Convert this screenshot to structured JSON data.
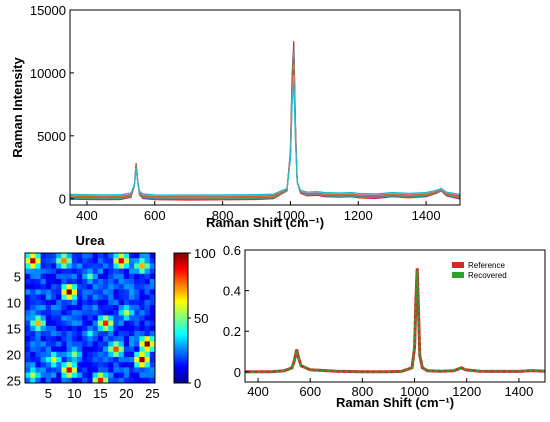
{
  "chart_data": [
    {
      "type": "line",
      "xlabel": "Raman Shift (cm⁻¹)",
      "ylabel": "Raman Intensity",
      "xlim": [
        350,
        1500
      ],
      "ylim": [
        -500,
        15000
      ],
      "xticks": [
        "400",
        "600",
        "800",
        "1000",
        "1200",
        "1400"
      ],
      "yticks": [
        "0",
        "5000",
        "10000",
        "15000"
      ],
      "ytick_values": [
        0,
        5000,
        10000,
        15000
      ],
      "xtick_values": [
        400,
        600,
        800,
        1000,
        1200,
        1400
      ],
      "series": [
        {
          "x": [
            350,
            400,
            450,
            500,
            530,
            540,
            545,
            550,
            555,
            565,
            600,
            700,
            800,
            900,
            950,
            990,
            1000,
            1005,
            1010,
            1015,
            1020,
            1030,
            1050,
            1080,
            1100,
            1150,
            1180,
            1200,
            1250,
            1300,
            1350,
            1400,
            1430,
            1445,
            1460,
            1500
          ],
          "y": [
            150,
            120,
            100,
            120,
            300,
            1200,
            3000,
            1500,
            500,
            200,
            100,
            80,
            90,
            120,
            180,
            800,
            4000,
            10000,
            12700,
            6000,
            1500,
            600,
            400,
            450,
            350,
            300,
            350,
            250,
            200,
            350,
            250,
            350,
            600,
            800,
            400,
            150
          ]
        }
      ],
      "colors": [
        "#e41a1c",
        "#377eb8",
        "#4daf4a",
        "#984ea3",
        "#ff7f00",
        "#a65628",
        "#f781bf",
        "#17becf"
      ]
    },
    {
      "type": "heatmap",
      "title": "Urea",
      "xticks": [
        "5",
        "10",
        "15",
        "20",
        "25"
      ],
      "yticks": [
        "5",
        "10",
        "15",
        "20",
        "25"
      ],
      "tick_values": [
        5,
        10,
        15,
        20,
        25
      ],
      "grid_size": 25,
      "colorbar_ticks": [
        "100",
        "50",
        "0"
      ],
      "colorbar_values": [
        100,
        50,
        0
      ],
      "clim": [
        0,
        100
      ],
      "hotspots": [
        {
          "x": 2,
          "y": 2,
          "v": 95
        },
        {
          "x": 8,
          "y": 2,
          "v": 75
        },
        {
          "x": 19,
          "y": 2,
          "v": 90
        },
        {
          "x": 23,
          "y": 3,
          "v": 70
        },
        {
          "x": 9,
          "y": 8,
          "v": 100
        },
        {
          "x": 13,
          "y": 5,
          "v": 45
        },
        {
          "x": 3,
          "y": 14,
          "v": 70
        },
        {
          "x": 16,
          "y": 14,
          "v": 85
        },
        {
          "x": 20,
          "y": 12,
          "v": 55
        },
        {
          "x": 24,
          "y": 18,
          "v": 100
        },
        {
          "x": 23,
          "y": 21,
          "v": 100
        },
        {
          "x": 18,
          "y": 19,
          "v": 80
        },
        {
          "x": 10,
          "y": 20,
          "v": 50
        },
        {
          "x": 6,
          "y": 21,
          "v": 60
        },
        {
          "x": 9,
          "y": 23,
          "v": 90
        },
        {
          "x": 15,
          "y": 25,
          "v": 85
        },
        {
          "x": 2,
          "y": 24,
          "v": 55
        },
        {
          "x": 13,
          "y": 16,
          "v": 40
        }
      ]
    },
    {
      "type": "line",
      "xlabel": "Raman Shift (cm⁻¹)",
      "xlim": [
        350,
        1500
      ],
      "ylim": [
        -0.05,
        0.6
      ],
      "xticks": [
        "400",
        "600",
        "800",
        "1000",
        "1200",
        "1400"
      ],
      "xtick_values": [
        400,
        600,
        800,
        1000,
        1200,
        1400
      ],
      "yticks": [
        "0",
        "0.2",
        "0.4",
        "0.6"
      ],
      "ytick_values": [
        0,
        0.2,
        0.4,
        0.6
      ],
      "legend_position": "top-right",
      "series": [
        {
          "name": "Reference",
          "color": "#d62728",
          "x": [
            350,
            400,
            450,
            500,
            530,
            540,
            548,
            555,
            565,
            600,
            700,
            800,
            900,
            950,
            990,
            1000,
            1005,
            1010,
            1015,
            1020,
            1030,
            1050,
            1100,
            1150,
            1170,
            1180,
            1195,
            1250,
            1300,
            1400,
            1450,
            1500
          ],
          "y": [
            0.0,
            0.0,
            0.0,
            0.005,
            0.02,
            0.06,
            0.11,
            0.07,
            0.03,
            0.01,
            0.003,
            0.0,
            0.0,
            0.002,
            0.02,
            0.12,
            0.35,
            0.51,
            0.3,
            0.08,
            0.02,
            0.005,
            0.003,
            0.005,
            0.015,
            0.02,
            0.01,
            0.003,
            0.002,
            0.002,
            0.006,
            0.003
          ]
        },
        {
          "name": "Recovered",
          "color": "#2ca02c",
          "x": [
            350,
            400,
            450,
            500,
            530,
            540,
            548,
            555,
            565,
            600,
            700,
            800,
            900,
            950,
            990,
            1000,
            1005,
            1010,
            1015,
            1020,
            1030,
            1050,
            1100,
            1150,
            1170,
            1180,
            1195,
            1250,
            1300,
            1400,
            1450,
            1500
          ],
          "y": [
            0.0,
            0.0,
            0.0,
            0.005,
            0.02,
            0.058,
            0.105,
            0.068,
            0.03,
            0.01,
            0.003,
            0.0,
            0.0,
            0.002,
            0.02,
            0.12,
            0.34,
            0.5,
            0.29,
            0.08,
            0.02,
            0.005,
            0.003,
            0.005,
            0.015,
            0.02,
            0.01,
            0.003,
            0.002,
            0.002,
            0.006,
            0.003
          ]
        }
      ]
    }
  ]
}
